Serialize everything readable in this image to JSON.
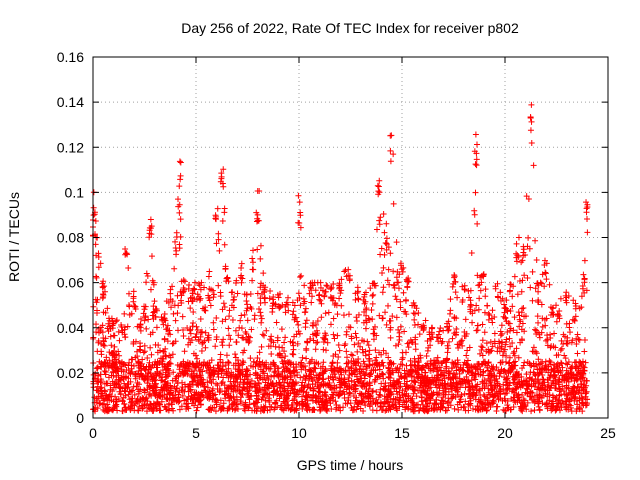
{
  "chart_data": {
    "type": "scatter",
    "title": "Day 256 of 2022, Rate Of TEC Index for receiver p802",
    "xlabel": "GPS time / hours",
    "ylabel": "ROTI / TECUs",
    "xlim": [
      0,
      25
    ],
    "ylim": [
      0,
      0.16
    ],
    "xticks": [
      "0",
      "5",
      "10",
      "15",
      "20",
      "25"
    ],
    "yticks": [
      "0",
      "0.02",
      "0.04",
      "0.06",
      "0.08",
      "0.1",
      "0.12",
      "0.14",
      "0.16"
    ],
    "grid": true,
    "legend": "none",
    "marker": "plus",
    "color": "#ff0000",
    "envelope": {
      "x": [
        0.0,
        0.1,
        0.2,
        0.5,
        0.8,
        1.0,
        1.5,
        1.6,
        2.0,
        2.3,
        2.5,
        2.8,
        3.0,
        3.4,
        3.8,
        4.0,
        4.2,
        4.4,
        4.8,
        5.2,
        5.6,
        6.0,
        6.3,
        6.5,
        6.8,
        7.2,
        7.5,
        7.8,
        8.0,
        8.3,
        8.7,
        9.0,
        9.4,
        9.8,
        10.0,
        10.3,
        10.6,
        11.0,
        11.3,
        11.6,
        12.0,
        12.4,
        12.8,
        13.2,
        13.6,
        13.9,
        14.2,
        14.5,
        14.8,
        15.0,
        15.3,
        15.6,
        16.0,
        16.4,
        16.8,
        17.2,
        17.6,
        18.0,
        18.3,
        18.6,
        18.9,
        19.2,
        19.6,
        20.0,
        20.3,
        20.6,
        20.9,
        21.3,
        21.6,
        22.0,
        22.3,
        22.6,
        23.0,
        23.4,
        23.8,
        24.0
      ],
      "y": [
        0.09,
        0.102,
        0.08,
        0.06,
        0.045,
        0.045,
        0.04,
        0.075,
        0.055,
        0.045,
        0.05,
        0.09,
        0.05,
        0.045,
        0.06,
        0.085,
        0.115,
        0.065,
        0.06,
        0.06,
        0.06,
        0.1,
        0.114,
        0.07,
        0.055,
        0.07,
        0.055,
        0.075,
        0.101,
        0.06,
        0.055,
        0.055,
        0.055,
        0.05,
        0.1,
        0.055,
        0.06,
        0.06,
        0.06,
        0.06,
        0.06,
        0.07,
        0.06,
        0.055,
        0.06,
        0.114,
        0.09,
        0.128,
        0.065,
        0.07,
        0.065,
        0.05,
        0.045,
        0.04,
        0.04,
        0.045,
        0.065,
        0.06,
        0.055,
        0.13,
        0.065,
        0.05,
        0.06,
        0.05,
        0.06,
        0.08,
        0.08,
        0.14,
        0.06,
        0.07,
        0.05,
        0.05,
        0.06,
        0.05,
        0.065,
        0.1
      ]
    }
  }
}
